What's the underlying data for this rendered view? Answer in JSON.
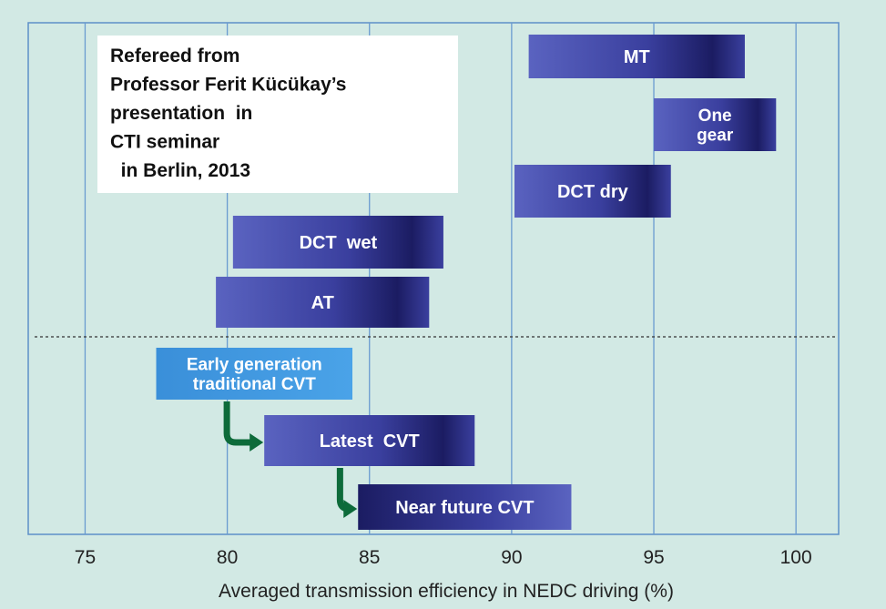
{
  "chart_data": {
    "type": "range-bar",
    "title": "",
    "xlabel": "Averaged transmission efficiency in NEDC driving (%)",
    "ylabel": "",
    "xlim": [
      73,
      101.5
    ],
    "xticks": [
      75,
      80,
      85,
      90,
      95,
      100
    ],
    "grid": true,
    "annotation": [
      "Refereed from",
      "Professor Ferit Kücükay’s",
      "presentation  in",
      "CTI seminar",
      "  in Berlin, 2013"
    ],
    "bars": [
      {
        "name": "MT",
        "lines": [
          "MT"
        ],
        "start": 90.6,
        "end": 98.2,
        "group": "conventional",
        "row": 0
      },
      {
        "name": "One gear",
        "lines": [
          "One",
          "gear"
        ],
        "start": 95.0,
        "end": 99.3,
        "group": "conventional",
        "row": 1
      },
      {
        "name": "DCT dry",
        "lines": [
          "DCT dry"
        ],
        "start": 90.1,
        "end": 95.6,
        "group": "conventional",
        "row": 2
      },
      {
        "name": "DCT wet",
        "lines": [
          "DCT  wet"
        ],
        "start": 80.2,
        "end": 87.6,
        "group": "conventional",
        "row": 3
      },
      {
        "name": "AT",
        "lines": [
          "AT"
        ],
        "start": 79.6,
        "end": 87.1,
        "group": "conventional",
        "row": 4
      },
      {
        "name": "Early generation traditional CVT",
        "lines": [
          "Early generation",
          "traditional CVT"
        ],
        "start": 77.5,
        "end": 84.4,
        "group": "cvt",
        "row": 5
      },
      {
        "name": "Latest CVT",
        "lines": [
          "Latest  CVT"
        ],
        "start": 81.3,
        "end": 88.7,
        "group": "cvt",
        "row": 6
      },
      {
        "name": "Near future CVT",
        "lines": [
          "Near future CVT"
        ],
        "start": 84.6,
        "end": 92.1,
        "group": "cvt",
        "row": 7
      }
    ],
    "arrows": [
      {
        "from": "Early generation traditional CVT",
        "to": "Latest CVT"
      },
      {
        "from": "Latest CVT",
        "to": "Near future CVT"
      }
    ],
    "colors": {
      "background": "#d2e9e4",
      "gridline": "#6a9bd0",
      "frame": "#5c8fc8",
      "bar_dark": "#1b1c62",
      "bar_mid": "#3a3f9e",
      "bar_light": "#5a63c0",
      "cvt_early_left": "#3a8fd9",
      "cvt_early_right": "#4aa3e8",
      "arrow": "#0d6b3a",
      "note_box": "#ffffff"
    }
  }
}
